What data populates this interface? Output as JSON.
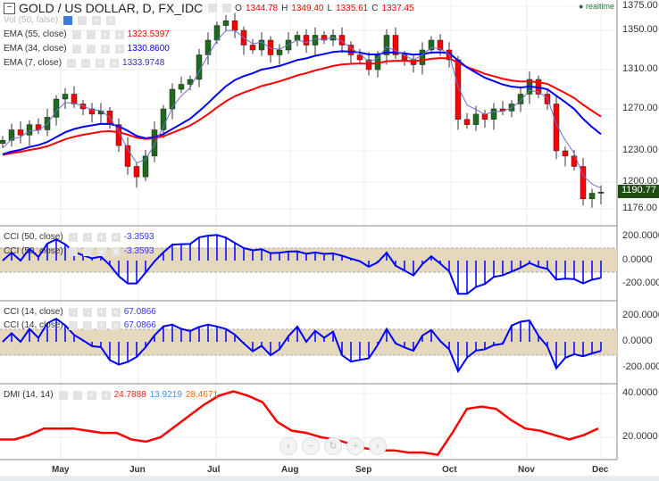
{
  "header": {
    "title": "GOLD / US DOLLAR, D, FX_IDC",
    "o_label": "O",
    "o": "1344.78",
    "h_label": "H",
    "h": "1349.40",
    "l_label": "L",
    "l": "1335.61",
    "c_label": "C",
    "c": "1337.45",
    "realtime": "realtime"
  },
  "legends": {
    "vol": "Vol (50, false)",
    "ema55": "EMA (55, close)",
    "ema55_val": "1323.5397",
    "ema34": "EMA (34, close)",
    "ema34_val": "1330.8600",
    "ema7": "EMA (7, close)",
    "ema7_val": "1333.9748",
    "cci50": "CCI (50, close)",
    "cci50_val": "-3.3593",
    "cci14": "CCI (14, close)",
    "cci14_val": "67.0866",
    "dmi": "DMI (14, 14)",
    "dmi_adx": "24.7888",
    "dmi_plus": "13.9219",
    "dmi_minus": "28.4671"
  },
  "colors": {
    "up": "#1e6b1e",
    "down": "#ff0000",
    "ema55": "#ff0000",
    "ema34": "#0000ff",
    "ema7": "#7070d0",
    "cci": "#0000ff",
    "band": "#e5d8bd",
    "adx": "#ff0000"
  },
  "chart_data": [
    {
      "type": "candlestick",
      "title": "GOLD / US DOLLAR, D, FX_IDC",
      "y_ticks": [
        "1375.00",
        "1350.00",
        "1310.00",
        "1270.00",
        "1230.00",
        "1200.00",
        "1176.00"
      ],
      "last_price": "1190.77",
      "x_ticks": [
        "May",
        "Jun",
        "Jul",
        "Aug",
        "Sep",
        "Oct",
        "Nov",
        "Dec"
      ],
      "closes": [
        1240,
        1250,
        1245,
        1255,
        1250,
        1262,
        1280,
        1285,
        1275,
        1270,
        1265,
        1268,
        1255,
        1235,
        1215,
        1205,
        1225,
        1250,
        1270,
        1290,
        1295,
        1300,
        1325,
        1340,
        1355,
        1360,
        1350,
        1335,
        1330,
        1340,
        1325,
        1330,
        1340,
        1345,
        1335,
        1345,
        1340,
        1345,
        1335,
        1325,
        1320,
        1310,
        1325,
        1345,
        1325,
        1320,
        1315,
        1330,
        1340,
        1330,
        1320,
        1260,
        1255,
        1265,
        1260,
        1270,
        1268,
        1275,
        1285,
        1300,
        1285,
        1275,
        1230,
        1225,
        1215,
        1185,
        1190,
        1191
      ]
    },
    {
      "type": "histogram",
      "name": "CCI (50, close)",
      "y_ticks": [
        "200.0000",
        "0.0000",
        "-200.0000"
      ]
    },
    {
      "type": "histogram",
      "name": "CCI (14, close)",
      "y_ticks": [
        "200.0000",
        "0.0000",
        "-200.0000"
      ]
    },
    {
      "type": "line",
      "name": "DMI (14, 14)",
      "y_ticks": [
        "40.0000",
        "20.0000"
      ],
      "adx": [
        19,
        19,
        21,
        24,
        24,
        24,
        23,
        22,
        22,
        19,
        18,
        20,
        25,
        30,
        35,
        39,
        41,
        39,
        36,
        27,
        23,
        22,
        20,
        19,
        17,
        15,
        14,
        14,
        13,
        13,
        12,
        22,
        33,
        34,
        33,
        28,
        24,
        23,
        21,
        19,
        21,
        24
      ]
    }
  ],
  "nav": {
    "prev": "‹",
    "zoom_out": "−",
    "reset": "↻",
    "zoom_in": "+",
    "next": "›"
  }
}
